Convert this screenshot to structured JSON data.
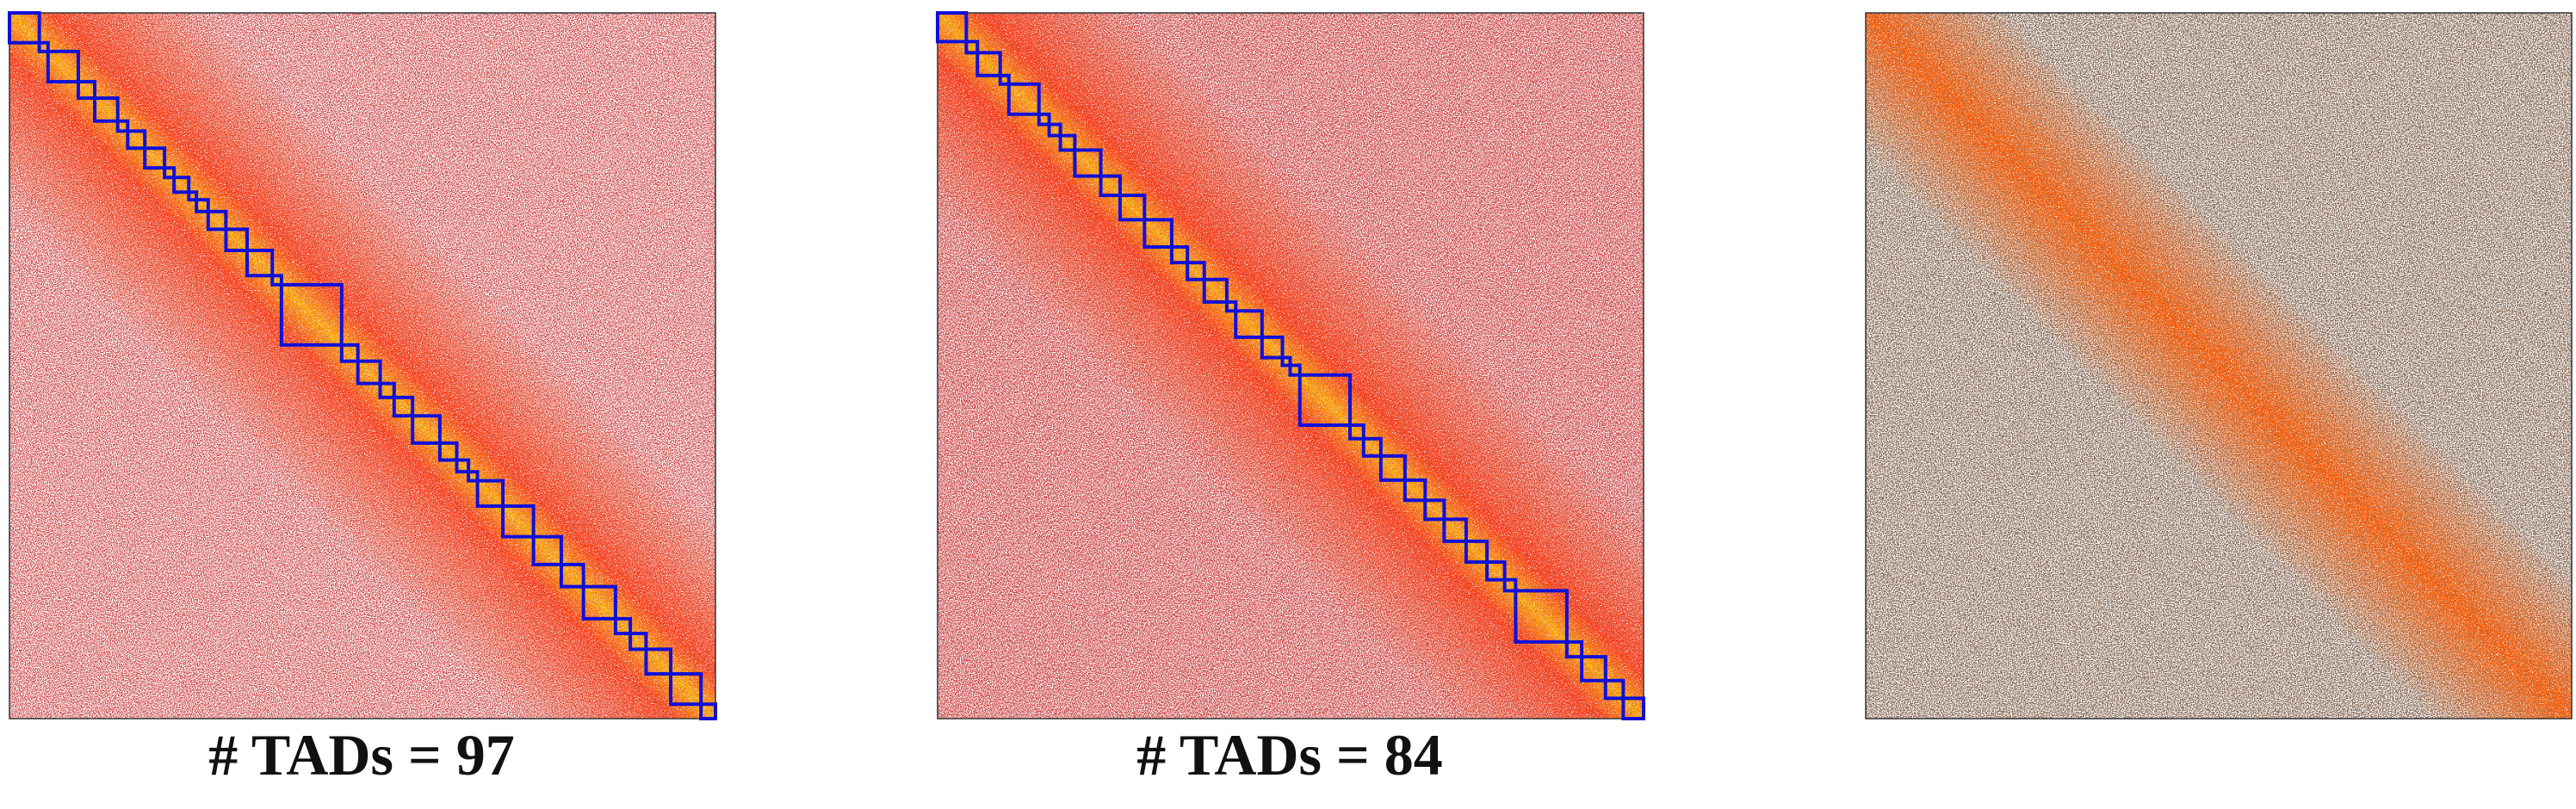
{
  "captions": [
    "# TADs = 97",
    "# TADs = 84"
  ]
}
